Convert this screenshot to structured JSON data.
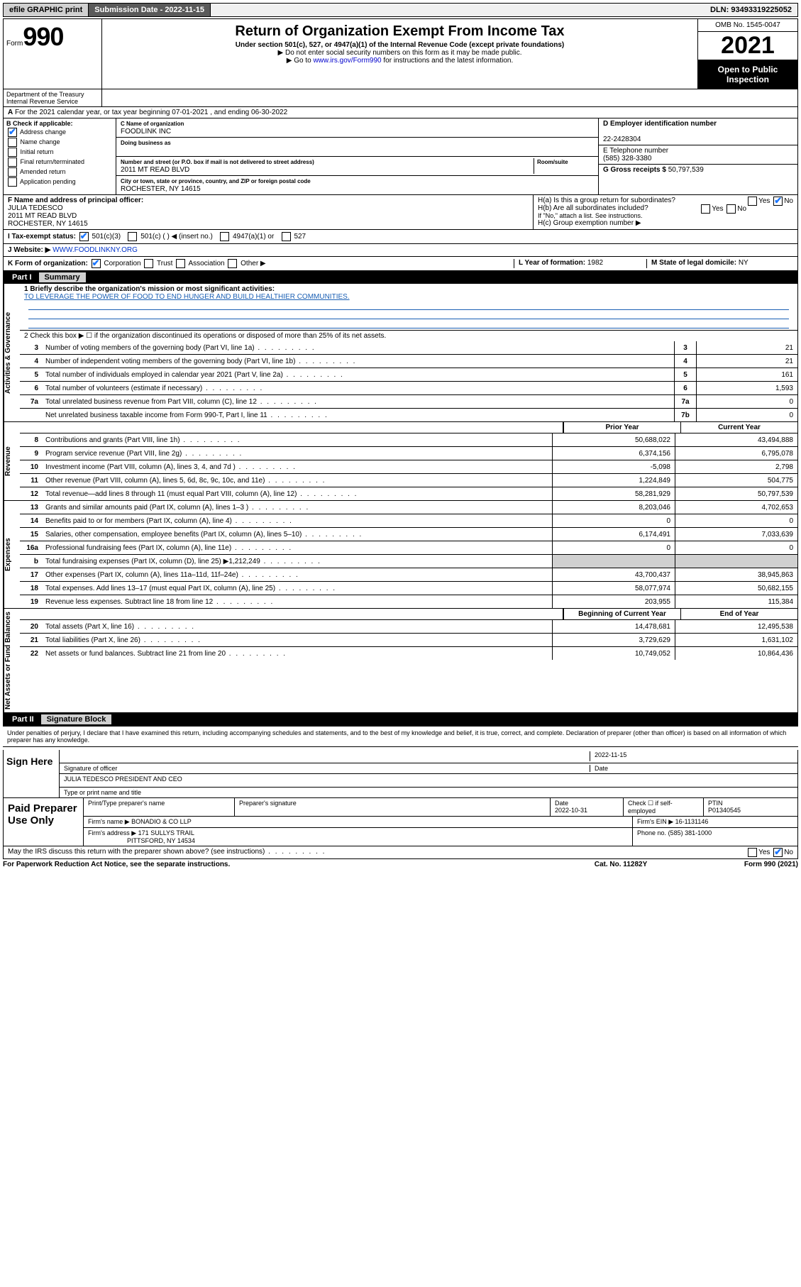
{
  "topbar": {
    "efile": "efile GRAPHIC print",
    "submission_label": "Submission Date - 2022-11-15",
    "dln": "DLN: 93493319225052"
  },
  "header": {
    "form_word": "Form",
    "form_num": "990",
    "title": "Return of Organization Exempt From Income Tax",
    "sub1": "Under section 501(c), 527, or 4947(a)(1) of the Internal Revenue Code (except private foundations)",
    "sub2": "▶ Do not enter social security numbers on this form as it may be made public.",
    "sub3_pre": "▶ Go to ",
    "sub3_link": "www.irs.gov/Form990",
    "sub3_post": " for instructions and the latest information.",
    "omb": "OMB No. 1545-0047",
    "year": "2021",
    "inspect": "Open to Public Inspection",
    "dept": "Department of the Treasury Internal Revenue Service"
  },
  "A": {
    "text": "For the 2021 calendar year, or tax year beginning 07-01-2021   , and ending 06-30-2022"
  },
  "B": {
    "label": "B Check if applicable:",
    "items": [
      "Address change",
      "Name change",
      "Initial return",
      "Final return/terminated",
      "Amended return",
      "Application pending"
    ],
    "checked_idx": 0
  },
  "C": {
    "name_lbl": "C Name of organization",
    "name": "FOODLINK INC",
    "dba_lbl": "Doing business as",
    "street_lbl": "Number and street (or P.O. box if mail is not delivered to street address)",
    "street": "2011 MT READ BLVD",
    "room_lbl": "Room/suite",
    "city_lbl": "City or town, state or province, country, and ZIP or foreign postal code",
    "city": "ROCHESTER, NY  14615"
  },
  "D": {
    "lbl": "D Employer identification number",
    "val": "22-2428304"
  },
  "E": {
    "lbl": "E Telephone number",
    "val": "(585) 328-3380"
  },
  "G": {
    "lbl": "G Gross receipts $",
    "val": "50,797,539"
  },
  "F": {
    "lbl": "F  Name and address of principal officer:",
    "name": "JULIA TEDESCO",
    "addr1": "2011 MT READ BLVD",
    "addr2": "ROCHESTER, NY  14615"
  },
  "H": {
    "a": "H(a)  Is this a group return for subordinates?",
    "b": "H(b)  Are all subordinates included?",
    "b_note": "If \"No,\" attach a list. See instructions.",
    "c": "H(c)  Group exemption number ▶",
    "yes": "Yes",
    "no": "No"
  },
  "I": {
    "lbl": "I    Tax-exempt status:",
    "opts": [
      "501(c)(3)",
      "501(c) (  ) ◀ (insert no.)",
      "4947(a)(1) or",
      "527"
    ]
  },
  "J": {
    "lbl": "J    Website: ▶",
    "val": "WWW.FOODLINKNY.ORG"
  },
  "K": {
    "lbl": "K Form of organization:",
    "opts": [
      "Corporation",
      "Trust",
      "Association",
      "Other ▶"
    ]
  },
  "L": {
    "lbl": "L Year of formation:",
    "val": "1982"
  },
  "M": {
    "lbl": "M State of legal domicile:",
    "val": "NY"
  },
  "part1": {
    "hdr_num": "Part I",
    "hdr_txt": "Summary",
    "tabs": [
      "Activities & Governance",
      "Revenue",
      "Expenses",
      "Net Assets or Fund Balances"
    ],
    "q1_lbl": "1  Briefly describe the organization's mission or most significant activities:",
    "q1_val": "TO LEVERAGE THE POWER OF FOOD TO END HUNGER AND BUILD HEALTHIER COMMUNITIES.",
    "q2": "2   Check this box ▶ ☐  if the organization discontinued its operations or disposed of more than 25% of its net assets.",
    "rows_gov": [
      {
        "n": "3",
        "d": "Number of voting members of the governing body (Part VI, line 1a)",
        "c": "3",
        "v": "21"
      },
      {
        "n": "4",
        "d": "Number of independent voting members of the governing body (Part VI, line 1b)",
        "c": "4",
        "v": "21"
      },
      {
        "n": "5",
        "d": "Total number of individuals employed in calendar year 2021 (Part V, line 2a)",
        "c": "5",
        "v": "161"
      },
      {
        "n": "6",
        "d": "Total number of volunteers (estimate if necessary)",
        "c": "6",
        "v": "1,593"
      },
      {
        "n": "7a",
        "d": "Total unrelated business revenue from Part VIII, column (C), line 12",
        "c": "7a",
        "v": "0"
      },
      {
        "n": "",
        "d": "Net unrelated business taxable income from Form 990-T, Part I, line 11",
        "c": "7b",
        "v": "0"
      }
    ],
    "col_prior": "Prior Year",
    "col_curr": "Current Year",
    "rows_rev": [
      {
        "n": "8",
        "d": "Contributions and grants (Part VIII, line 1h)",
        "p": "50,688,022",
        "c": "43,494,888"
      },
      {
        "n": "9",
        "d": "Program service revenue (Part VIII, line 2g)",
        "p": "6,374,156",
        "c": "6,795,078"
      },
      {
        "n": "10",
        "d": "Investment income (Part VIII, column (A), lines 3, 4, and 7d )",
        "p": "-5,098",
        "c": "2,798"
      },
      {
        "n": "11",
        "d": "Other revenue (Part VIII, column (A), lines 5, 6d, 8c, 9c, 10c, and 11e)",
        "p": "1,224,849",
        "c": "504,775"
      },
      {
        "n": "12",
        "d": "Total revenue—add lines 8 through 11 (must equal Part VIII, column (A), line 12)",
        "p": "58,281,929",
        "c": "50,797,539"
      }
    ],
    "rows_exp": [
      {
        "n": "13",
        "d": "Grants and similar amounts paid (Part IX, column (A), lines 1–3 )",
        "p": "8,203,046",
        "c": "4,702,653"
      },
      {
        "n": "14",
        "d": "Benefits paid to or for members (Part IX, column (A), line 4)",
        "p": "0",
        "c": "0"
      },
      {
        "n": "15",
        "d": "Salaries, other compensation, employee benefits (Part IX, column (A), lines 5–10)",
        "p": "6,174,491",
        "c": "7,033,639"
      },
      {
        "n": "16a",
        "d": "Professional fundraising fees (Part IX, column (A), line 11e)",
        "p": "0",
        "c": "0"
      },
      {
        "n": "b",
        "d": "Total fundraising expenses (Part IX, column (D), line 25) ▶1,212,249",
        "p": "",
        "c": "",
        "grey": true
      },
      {
        "n": "17",
        "d": "Other expenses (Part IX, column (A), lines 11a–11d, 11f–24e)",
        "p": "43,700,437",
        "c": "38,945,863"
      },
      {
        "n": "18",
        "d": "Total expenses. Add lines 13–17 (must equal Part IX, column (A), line 25)",
        "p": "58,077,974",
        "c": "50,682,155"
      },
      {
        "n": "19",
        "d": "Revenue less expenses. Subtract line 18 from line 12",
        "p": "203,955",
        "c": "115,384"
      }
    ],
    "col_begin": "Beginning of Current Year",
    "col_end": "End of Year",
    "rows_net": [
      {
        "n": "20",
        "d": "Total assets (Part X, line 16)",
        "p": "14,478,681",
        "c": "12,495,538"
      },
      {
        "n": "21",
        "d": "Total liabilities (Part X, line 26)",
        "p": "3,729,629",
        "c": "1,631,102"
      },
      {
        "n": "22",
        "d": "Net assets or fund balances. Subtract line 21 from line 20",
        "p": "10,749,052",
        "c": "10,864,436"
      }
    ]
  },
  "part2": {
    "hdr_num": "Part II",
    "hdr_txt": "Signature Block",
    "penalty": "Under penalties of perjury, I declare that I have examined this return, including accompanying schedules and statements, and to the best of my knowledge and belief, it is true, correct, and complete. Declaration of preparer (other than officer) is based on all information of which preparer has any knowledge.",
    "sign_lbl": "Sign Here",
    "sig_officer_lbl": "Signature of officer",
    "sig_date": "2022-11-15",
    "date_lbl": "Date",
    "officer_name": "JULIA TEDESCO  PRESIDENT AND CEO",
    "officer_sub": "Type or print name and title",
    "paid_lbl": "Paid Preparer Use Only",
    "prep_name_lbl": "Print/Type preparer's name",
    "prep_sig_lbl": "Preparer's signature",
    "prep_date_lbl": "Date",
    "prep_date": "2022-10-31",
    "prep_check_lbl": "Check ☐ if self-employed",
    "ptin_lbl": "PTIN",
    "ptin": "P01340545",
    "firm_name_lbl": "Firm's name    ▶",
    "firm_name": "BONADIO & CO LLP",
    "firm_ein_lbl": "Firm's EIN ▶",
    "firm_ein": "16-1131146",
    "firm_addr_lbl": "Firm's address ▶",
    "firm_addr1": "171 SULLYS TRAIL",
    "firm_addr2": "PITTSFORD, NY  14534",
    "firm_phone_lbl": "Phone no.",
    "firm_phone": "(585) 381-1000",
    "discuss": "May the IRS discuss this return with the preparer shown above? (see instructions)",
    "yes": "Yes",
    "no": "No"
  },
  "footer": {
    "left": "For Paperwork Reduction Act Notice, see the separate instructions.",
    "mid": "Cat. No. 11282Y",
    "right": "Form 990 (2021)"
  }
}
